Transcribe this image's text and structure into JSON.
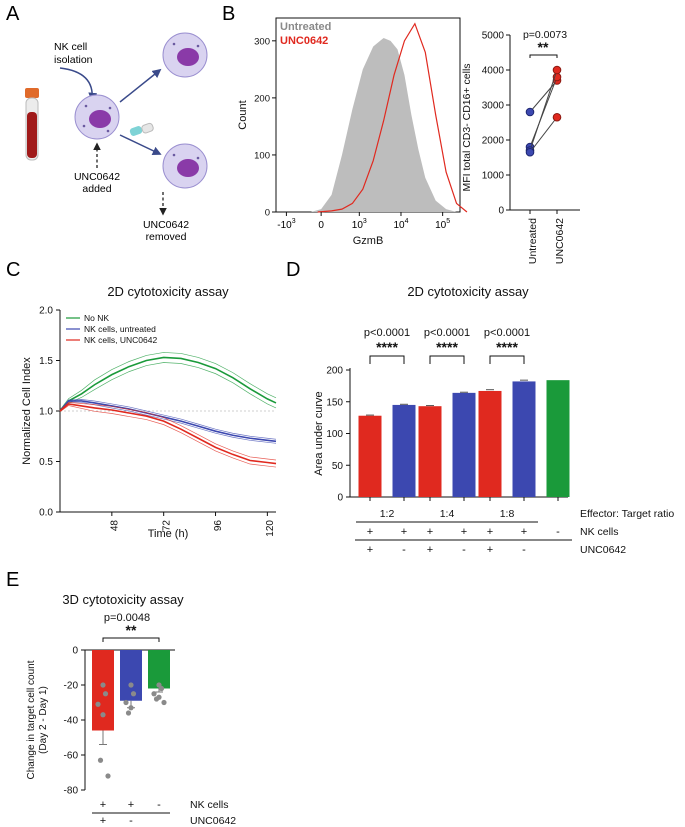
{
  "panels": {
    "A": {
      "letter": "A",
      "nk_isolation": [
        "NK cell",
        "isolation"
      ],
      "added": [
        "UNC0642",
        "added"
      ],
      "removed": [
        "UNC0642",
        "removed"
      ]
    },
    "B": {
      "letter": "B"
    },
    "C": {
      "letter": "C"
    },
    "D": {
      "letter": "D"
    },
    "E": {
      "letter": "E"
    }
  },
  "colors": {
    "red": "#e0291f",
    "blue": "#3c48b0",
    "green": "#1a9a3a",
    "gray": "#bdbdbd",
    "dot": "#8a8a8a"
  },
  "chart_data": [
    {
      "id": "B-hist",
      "type": "area",
      "legend": [
        "Untreated",
        "UNC0642"
      ],
      "xlabel": "GzmB",
      "ylabel": "Count",
      "xticks": [
        "-10^3",
        "0",
        "10^3",
        "10^4",
        "10^5"
      ],
      "yticks": [
        0,
        100,
        200,
        300
      ],
      "ylim": [
        0,
        340
      ],
      "series": [
        {
          "name": "Untreated",
          "style": "filled gray",
          "x": [
            -0.6,
            -0.3,
            0,
            0.3,
            0.6,
            0.9,
            1.2,
            1.5,
            1.8,
            2.0,
            2.2,
            2.4,
            2.6,
            2.8,
            3.0,
            3.3,
            3.6,
            3.9
          ],
          "y": [
            0,
            0,
            5,
            30,
            100,
            180,
            250,
            290,
            305,
            300,
            285,
            240,
            170,
            110,
            60,
            20,
            5,
            0
          ]
        },
        {
          "name": "UNC0642",
          "style": "red outline",
          "x": [
            -0.1,
            0.3,
            0.6,
            0.9,
            1.2,
            1.5,
            1.8,
            2.1,
            2.4,
            2.7,
            3.0,
            3.3,
            3.6,
            3.9,
            4.2
          ],
          "y": [
            0,
            2,
            5,
            15,
            40,
            90,
            160,
            240,
            300,
            330,
            280,
            170,
            70,
            15,
            0
          ]
        }
      ]
    },
    {
      "id": "B-paired",
      "type": "scatter",
      "ylabel": "MFI total CD3- CD16+ cells",
      "categories": [
        "Untreated",
        "UNC0642"
      ],
      "yticks": [
        0,
        1000,
        2000,
        3000,
        4000,
        5000
      ],
      "ylim": [
        0,
        5000
      ],
      "annotation": {
        "p": "p=0.0073",
        "stars": "**"
      },
      "pairs": [
        [
          2800,
          3700
        ],
        [
          1800,
          3800
        ],
        [
          1700,
          4000
        ],
        [
          1650,
          2650
        ]
      ]
    },
    {
      "id": "C",
      "type": "line",
      "title": "2D cytotoxicity assay",
      "xlabel": "Time (h)",
      "ylabel": "Normalized Cell Index",
      "xticks": [
        48,
        72,
        96,
        120
      ],
      "yticks": [
        "0.0",
        "0.5",
        "1.0",
        "1.5",
        "2.0"
      ],
      "xlim": [
        24,
        124
      ],
      "ylim": [
        0,
        2.0
      ],
      "legend": [
        "No NK",
        "NK cells, untreated",
        "NK cells, UNC0642"
      ],
      "series": [
        {
          "name": "No NK",
          "x": [
            24,
            28,
            34,
            40,
            48,
            56,
            64,
            72,
            80,
            88,
            96,
            104,
            112,
            120,
            124
          ],
          "y": [
            1.0,
            1.1,
            1.17,
            1.26,
            1.36,
            1.44,
            1.5,
            1.53,
            1.52,
            1.48,
            1.42,
            1.33,
            1.22,
            1.12,
            1.08
          ],
          "band": 0.05
        },
        {
          "name": "NK cells, untreated",
          "x": [
            24,
            28,
            34,
            40,
            48,
            56,
            64,
            72,
            80,
            88,
            96,
            104,
            112,
            120,
            124
          ],
          "y": [
            1.0,
            1.1,
            1.1,
            1.08,
            1.05,
            1.02,
            0.98,
            0.94,
            0.9,
            0.85,
            0.8,
            0.76,
            0.73,
            0.71,
            0.7
          ],
          "band": 0.02
        },
        {
          "name": "NK cells, UNC0642",
          "x": [
            24,
            28,
            34,
            40,
            48,
            56,
            64,
            72,
            80,
            88,
            96,
            104,
            112,
            120,
            124
          ],
          "y": [
            1.0,
            1.07,
            1.05,
            1.03,
            1.01,
            0.98,
            0.95,
            0.9,
            0.82,
            0.73,
            0.64,
            0.57,
            0.51,
            0.49,
            0.48
          ],
          "band": 0.035
        }
      ]
    },
    {
      "id": "D",
      "type": "bar",
      "title": "2D cytotoxicity assay",
      "ylabel": "Area under curve",
      "yticks": [
        0,
        50,
        100,
        150,
        200
      ],
      "ylim": [
        0,
        200
      ],
      "values": [
        128,
        145,
        143,
        164,
        167,
        182,
        184
      ],
      "errors": [
        1,
        1,
        1,
        1,
        2,
        2,
        0
      ],
      "bar_colors": [
        "red",
        "blue",
        "red",
        "blue",
        "red",
        "blue",
        "green"
      ],
      "ratio_label": "Effector: Target ratio",
      "ratios": [
        "1:2",
        "1:4",
        "1:8"
      ],
      "row_nk_label": "NK cells",
      "row_unc_label": "UNC0642",
      "nk_marks": [
        "+",
        "+",
        "+",
        "+",
        "+",
        "+",
        "-"
      ],
      "unc_marks": [
        "+",
        "-",
        "+",
        "-",
        "+",
        "-",
        ""
      ],
      "comparisons": [
        {
          "p": "p<0.0001",
          "stars": "****"
        },
        {
          "p": "p<0.0001",
          "stars": "****"
        },
        {
          "p": "p<0.0001",
          "stars": "****"
        }
      ]
    },
    {
      "id": "E",
      "type": "bar",
      "title": "3D cytotoxicity assay",
      "ylabel": "Change in target cell count (Day 2 - Day 1)",
      "ylabel_lines": [
        "Change in target cell count",
        "(Day 2 - Day 1)"
      ],
      "yticks": [
        0,
        -20,
        -40,
        -60,
        -80
      ],
      "ylim": [
        -80,
        0
      ],
      "values": [
        -46,
        -29,
        -22
      ],
      "errors": [
        8,
        4,
        2
      ],
      "bar_colors": [
        "red",
        "blue",
        "green"
      ],
      "points": [
        [
          -20,
          -25,
          -31,
          -37,
          -63,
          -72
        ],
        [
          -20,
          -25,
          -30,
          -33,
          -36
        ],
        [
          -20,
          -22,
          -25,
          -27,
          -28,
          -30
        ]
      ],
      "annotation": {
        "p": "p=0.0048",
        "stars": "**"
      },
      "row_nk_label": "NK cells",
      "row_unc_label": "UNC0642",
      "nk_marks": [
        "+",
        "+",
        "-"
      ],
      "unc_marks": [
        "+",
        "-",
        ""
      ]
    }
  ]
}
